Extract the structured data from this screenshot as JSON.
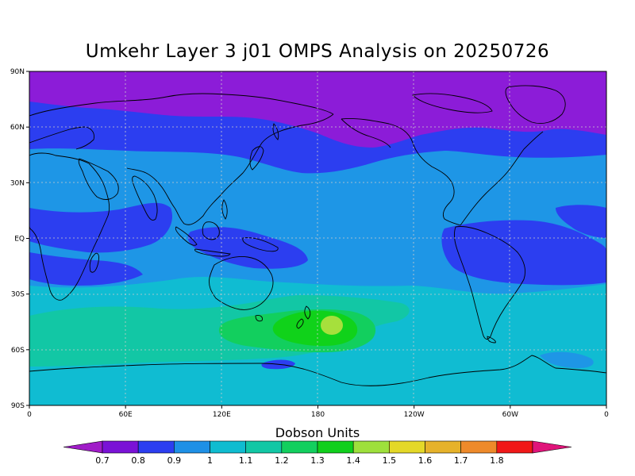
{
  "title": "Umkehr Layer 3 j01 OMPS Analysis on 20250726",
  "lat_ticks": [
    "90N",
    "60N",
    "30N",
    "EQ",
    "30S",
    "60S",
    "90S"
  ],
  "lon_ticks": [
    "0",
    "60E",
    "120E",
    "180",
    "120W",
    "60W",
    "0"
  ],
  "colorbar": {
    "title": "Dobson Units",
    "labels": [
      "0.7",
      "0.8",
      "0.9",
      "1",
      "1.1",
      "1.2",
      "1.3",
      "1.4",
      "1.5",
      "1.6",
      "1.7",
      "1.8"
    ],
    "colors": [
      "#a01cc8",
      "#7a12d6",
      "#2c3ef0",
      "#1e90e6",
      "#0fbcd0",
      "#12c7a5",
      "#12cf5e",
      "#10cf1c",
      "#9ee03c",
      "#e4d828",
      "#e6b22a",
      "#ee8a2a",
      "#f01818",
      "#e0147a"
    ]
  },
  "map": {
    "projection": "cylindrical equidistant",
    "lon_range": [
      0,
      360
    ],
    "lat_range": [
      -90,
      90
    ],
    "grid": true,
    "colors": {
      "c07": "#8c1cd8",
      "c08": "#2c3ef0",
      "c09": "#1e96e6",
      "c10": "#10bcd2",
      "c11": "#12c7a5",
      "c12": "#12cf5e",
      "c13": "#10d21a",
      "c14": "#a6e03c"
    }
  }
}
